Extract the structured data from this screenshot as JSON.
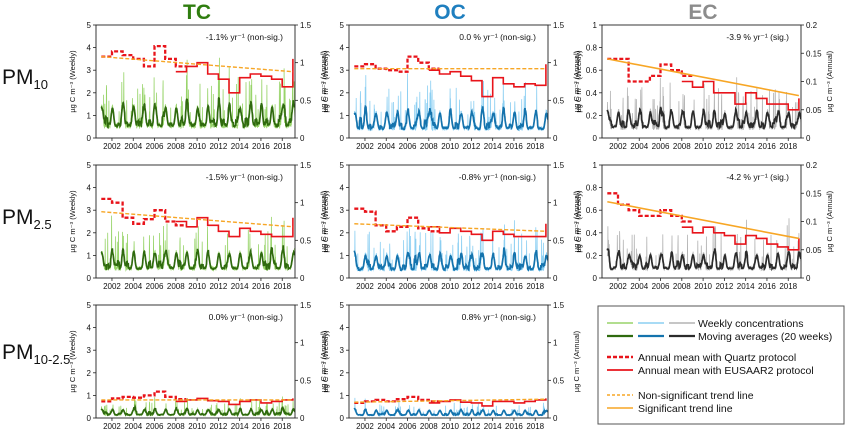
{
  "figure": {
    "columns": [
      {
        "label": "TC",
        "color": "#2f7d0f"
      },
      {
        "label": "OC",
        "color": "#1f7fbf"
      },
      {
        "label": "EC",
        "color": "#8c8c8c"
      }
    ],
    "rows": [
      {
        "main": "PM",
        "sub": "10"
      },
      {
        "main": "PM",
        "sub": "2.5"
      },
      {
        "main": "PM",
        "sub": "10-2.5"
      }
    ],
    "ylabel_left": "µg C m⁻³ (Weekly)",
    "ylabel_right": "µg C m⁻³ (Annual)",
    "x_tick_labels": [
      "2002",
      "2004",
      "2006",
      "2008",
      "2010",
      "2012",
      "2014",
      "2016",
      "2018"
    ]
  },
  "colors": {
    "tc_weekly": "#98d46a",
    "tc_avg": "#2f6a0e",
    "oc_weekly": "#8ccff2",
    "oc_avg": "#1473ad",
    "ec_weekly": "#b3b3b3",
    "ec_avg": "#2b2b2b",
    "quartz": "#e8141b",
    "eusaar": "#e8141b",
    "trend_nonsig": "#f7a625",
    "trend_sig": "#f7a625"
  },
  "legend": {
    "weekly": "Weekly concentrations",
    "moving": "Moving averages (20 weeks)",
    "quartz": "Annual mean with Quartz protocol",
    "eusaar": "Annual mean with EUSAAR2 protocol",
    "nonsig": "Non-significant trend line",
    "sig": "Significant trend line"
  },
  "chart_data": [
    {
      "type": "line",
      "row": "PM10",
      "column": "TC",
      "annotation": "-1.1% yr⁻¹ (non-sig.)",
      "significant": false,
      "x_range": [
        2000.5,
        2019.2
      ],
      "ylim_weekly": [
        0,
        5
      ],
      "yticks_weekly": [
        0,
        1,
        2,
        3,
        4,
        5
      ],
      "ylim_annual": [
        0,
        1.5
      ],
      "yticks_annual": [
        0,
        0.5,
        1,
        1.5
      ],
      "series": "tc",
      "seed": 11,
      "wk_base": 0.75,
      "wk_amp": 0.55,
      "years": [
        2001,
        2002,
        2003,
        2004,
        2005,
        2006,
        2007,
        2008,
        2009,
        2010,
        2011,
        2012,
        2013,
        2014,
        2015,
        2016,
        2017,
        2018,
        2019
      ],
      "annual_quartz": [
        1.08,
        1.15,
        1.1,
        1.05,
        0.95,
        1.22,
        1.05,
        0.95
      ],
      "annual_eusaar": [
        0.88,
        0.95,
        1.0,
        0.85,
        0.78,
        0.6,
        0.8,
        0.85,
        0.82,
        0.78,
        0.68,
        1.05
      ],
      "trend": [
        1.08,
        0.88
      ]
    },
    {
      "type": "line",
      "row": "PM10",
      "column": "OC",
      "annotation": "0.0 % yr⁻¹ (non-sig.)",
      "significant": false,
      "x_range": [
        2000.5,
        2019.2
      ],
      "ylim_weekly": [
        0,
        5
      ],
      "yticks_weekly": [
        0,
        1,
        2,
        3,
        4,
        5
      ],
      "ylim_annual": [
        0,
        1.5
      ],
      "yticks_annual": [
        0,
        0.5,
        1,
        1.5
      ],
      "series": "oc",
      "seed": 23,
      "wk_base": 0.6,
      "wk_amp": 0.45,
      "years": [
        2001,
        2002,
        2003,
        2004,
        2005,
        2006,
        2007,
        2008,
        2009,
        2010,
        2011,
        2012,
        2013,
        2014,
        2015,
        2016,
        2017,
        2018,
        2019
      ],
      "annual_quartz": [
        0.95,
        0.98,
        0.92,
        0.9,
        0.88,
        1.08,
        1.0,
        0.92
      ],
      "annual_eusaar": [
        0.9,
        0.85,
        0.88,
        0.82,
        0.76,
        0.55,
        0.8,
        0.72,
        0.68,
        0.72,
        0.7,
        0.98
      ],
      "trend": [
        0.92,
        0.92
      ]
    },
    {
      "type": "line",
      "row": "PM10",
      "column": "EC",
      "annotation": "-3.9 % yr⁻¹ (sig.)",
      "significant": true,
      "x_range": [
        2000.5,
        2019.2
      ],
      "ylim_weekly": [
        0,
        1
      ],
      "yticks_weekly": [
        0,
        0.2,
        0.4,
        0.6,
        0.8,
        1.0
      ],
      "ylim_annual": [
        0,
        0.2
      ],
      "yticks_annual": [
        0,
        0.05,
        0.1,
        0.15,
        0.2
      ],
      "series": "ec",
      "seed": 37,
      "wk_base": 0.13,
      "wk_amp": 0.09,
      "years": [
        2001,
        2002,
        2003,
        2004,
        2005,
        2006,
        2007,
        2008,
        2009,
        2010,
        2011,
        2012,
        2013,
        2014,
        2015,
        2016,
        2017,
        2018,
        2019
      ],
      "annual_quartz": [
        0.14,
        0.14,
        0.1,
        0.1,
        0.11,
        0.13,
        0.12,
        0.11
      ],
      "annual_eusaar": [
        0.1,
        0.09,
        0.1,
        0.08,
        0.08,
        0.06,
        0.08,
        0.07,
        0.06,
        0.06,
        0.05,
        0.07
      ],
      "trend": [
        0.14,
        0.075
      ]
    },
    {
      "type": "line",
      "row": "PM2.5",
      "column": "TC",
      "annotation": "-1.5% yr⁻¹ (non-sig.)",
      "significant": false,
      "x_range": [
        2000.5,
        2019.2
      ],
      "ylim_weekly": [
        0,
        5
      ],
      "yticks_weekly": [
        0,
        1,
        2,
        3,
        4,
        5
      ],
      "ylim_annual": [
        0,
        1.5
      ],
      "yticks_annual": [
        0,
        0.5,
        1,
        1.5
      ],
      "series": "tc",
      "seed": 51,
      "wk_base": 0.6,
      "wk_amp": 0.45,
      "years": [
        2001,
        2002,
        2003,
        2004,
        2005,
        2006,
        2007,
        2008,
        2009,
        2010,
        2011,
        2012,
        2013,
        2014,
        2015,
        2016,
        2017,
        2018,
        2019
      ],
      "annual_quartz": [
        1.05,
        1.0,
        0.8,
        0.72,
        0.78,
        0.9,
        0.75,
        0.7
      ],
      "annual_eusaar": [
        0.75,
        0.68,
        0.8,
        0.7,
        0.62,
        0.55,
        0.66,
        0.62,
        0.58,
        0.55,
        0.55,
        0.8
      ],
      "trend": [
        0.88,
        0.68
      ]
    },
    {
      "type": "line",
      "row": "PM2.5",
      "column": "OC",
      "annotation": "-0.8% yr⁻¹ (non-sig.)",
      "significant": false,
      "x_range": [
        2000.5,
        2019.2
      ],
      "ylim_weekly": [
        0,
        5
      ],
      "yticks_weekly": [
        0,
        1,
        2,
        3,
        4,
        5
      ],
      "ylim_annual": [
        0,
        1.5
      ],
      "yticks_annual": [
        0,
        0.5,
        1,
        1.5
      ],
      "series": "oc",
      "seed": 67,
      "wk_base": 0.55,
      "wk_amp": 0.4,
      "years": [
        2001,
        2002,
        2003,
        2004,
        2005,
        2006,
        2007,
        2008,
        2009,
        2010,
        2011,
        2012,
        2013,
        2014,
        2015,
        2016,
        2017,
        2018,
        2019
      ],
      "annual_quartz": [
        0.92,
        0.88,
        0.7,
        0.62,
        0.68,
        0.8,
        0.66,
        0.62
      ],
      "annual_eusaar": [
        0.68,
        0.6,
        0.66,
        0.62,
        0.58,
        0.5,
        0.62,
        0.58,
        0.55,
        0.55,
        0.55,
        0.72
      ],
      "trend": [
        0.72,
        0.62
      ]
    },
    {
      "type": "line",
      "row": "PM2.5",
      "column": "EC",
      "annotation": "-4.2 % yr⁻¹ (sig.)",
      "significant": true,
      "x_range": [
        2000.5,
        2019.2
      ],
      "ylim_weekly": [
        0,
        1
      ],
      "yticks_weekly": [
        0,
        0.2,
        0.4,
        0.6,
        0.8,
        1.0
      ],
      "ylim_annual": [
        0,
        0.2
      ],
      "yticks_annual": [
        0,
        0.05,
        0.1,
        0.15,
        0.2
      ],
      "series": "ec",
      "seed": 79,
      "wk_base": 0.12,
      "wk_amp": 0.08,
      "years": [
        2001,
        2002,
        2003,
        2004,
        2005,
        2006,
        2007,
        2008,
        2009,
        2010,
        2011,
        2012,
        2013,
        2014,
        2015,
        2016,
        2017,
        2018,
        2019
      ],
      "annual_quartz": [
        0.15,
        0.13,
        0.12,
        0.11,
        0.11,
        0.12,
        0.11,
        0.1
      ],
      "annual_eusaar": [
        0.09,
        0.08,
        0.09,
        0.08,
        0.075,
        0.06,
        0.075,
        0.07,
        0.06,
        0.055,
        0.05,
        0.07
      ],
      "trend": [
        0.135,
        0.07
      ]
    },
    {
      "type": "line",
      "row": "PM10-2.5",
      "column": "TC",
      "annotation": "0.0%  yr⁻¹ (non-sig.)",
      "significant": false,
      "x_range": [
        2000.5,
        2019.2
      ],
      "ylim_weekly": [
        0,
        5
      ],
      "yticks_weekly": [
        0,
        1,
        2,
        3,
        4,
        5
      ],
      "ylim_annual": [
        0,
        1.5
      ],
      "yticks_annual": [
        0,
        0.5,
        1,
        1.5
      ],
      "series": "tc",
      "seed": 91,
      "wk_base": 0.2,
      "wk_amp": 0.15,
      "years": [
        2001,
        2002,
        2003,
        2004,
        2005,
        2006,
        2007,
        2008,
        2009,
        2010,
        2011,
        2012,
        2013,
        2014,
        2015,
        2016,
        2017,
        2018,
        2019
      ],
      "annual_quartz": [
        0.22,
        0.26,
        0.28,
        0.27,
        0.3,
        0.35,
        0.28,
        0.25
      ],
      "annual_eusaar": [
        0.22,
        0.24,
        0.26,
        0.23,
        0.22,
        0.18,
        0.22,
        0.24,
        0.2,
        0.22,
        0.24,
        0.26
      ],
      "trend": [
        0.24,
        0.24
      ]
    },
    {
      "type": "line",
      "row": "PM10-2.5",
      "column": "OC",
      "annotation": "0.8% yr⁻¹ (non-sig.)",
      "significant": false,
      "x_range": [
        2000.5,
        2019.2
      ],
      "ylim_weekly": [
        0,
        5
      ],
      "yticks_weekly": [
        0,
        1,
        2,
        3,
        4,
        5
      ],
      "ylim_annual": [
        0,
        1.5
      ],
      "yticks_annual": [
        0,
        0.5,
        1,
        1.5
      ],
      "series": "oc",
      "seed": 103,
      "wk_base": 0.18,
      "wk_amp": 0.14,
      "years": [
        2001,
        2002,
        2003,
        2004,
        2005,
        2006,
        2007,
        2008,
        2009,
        2010,
        2011,
        2012,
        2013,
        2014,
        2015,
        2016,
        2017,
        2018,
        2019
      ],
      "annual_quartz": [
        0.2,
        0.22,
        0.24,
        0.22,
        0.25,
        0.28,
        0.24,
        0.22
      ],
      "annual_eusaar": [
        0.2,
        0.22,
        0.24,
        0.21,
        0.2,
        0.16,
        0.22,
        0.22,
        0.2,
        0.22,
        0.24,
        0.26
      ],
      "trend": [
        0.21,
        0.25
      ]
    }
  ]
}
